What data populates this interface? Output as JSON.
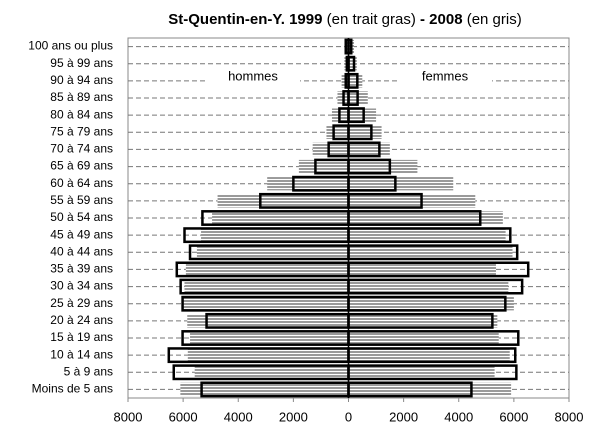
{
  "chart_data": {
    "type": "pyramid",
    "title": [
      {
        "text": "St-Quentin-en-Y. 1999",
        "bold": true
      },
      {
        "text": " (en trait gras) ",
        "bold": false
      },
      {
        "text": "- 2008",
        "bold": true
      },
      {
        "text": " (en gris)",
        "bold": false
      }
    ],
    "annotations": [
      "hommes",
      "femmes"
    ],
    "categories": [
      "100 ans ou plus",
      "95 à 99 ans",
      "90 à 94 ans",
      "85 à 89 ans",
      "80 à 84 ans",
      "75 à 79 ans",
      "70 à 74 ans",
      "65 à 69 ans",
      "60 à 64 ans",
      "55 à 59 ans",
      "50 à 54 ans",
      "45 à 49 ans",
      "40 à 44 ans",
      "35 à 39 ans",
      "30 à 34 ans",
      "25 à 29 ans",
      "20 à 24 ans",
      "15 à 19 ans",
      "10 à 14 ans",
      "5 à 9 ans",
      "Moins de 5 ans"
    ],
    "hommes": {
      "1999": [
        100,
        60,
        100,
        180,
        330,
        540,
        720,
        1200,
        2000,
        3200,
        5300,
        5950,
        5750,
        6230,
        6090,
        6020,
        5150,
        6020,
        6520,
        6340,
        5330
      ],
      "2008": [
        80,
        150,
        250,
        400,
        600,
        800,
        1300,
        1800,
        2950,
        4750,
        4950,
        5350,
        5500,
        5900,
        5950,
        6000,
        5850,
        5750,
        5830,
        5580,
        6100
      ]
    },
    "femmes": {
      "1999": [
        100,
        200,
        320,
        330,
        550,
        830,
        1120,
        1500,
        1700,
        2650,
        4780,
        5870,
        6120,
        6520,
        6300,
        5690,
        5220,
        6160,
        6050,
        6090,
        4460
      ],
      "2008": [
        200,
        300,
        500,
        700,
        1000,
        1200,
        1500,
        2500,
        3800,
        4600,
        5600,
        5700,
        5950,
        5350,
        5800,
        6000,
        5400,
        5450,
        5850,
        5300,
        5900
      ]
    },
    "color_2008": "#9a9a9a",
    "color_1999": "#000000",
    "xlim": [
      -8000,
      8000
    ],
    "xticks": [
      {
        "value": -8000,
        "label": "8000"
      },
      {
        "value": -6000,
        "label": "6000"
      },
      {
        "value": -4000,
        "label": "4000"
      },
      {
        "value": -2000,
        "label": "2000"
      },
      0,
      2000,
      4000,
      6000,
      8000
    ],
    "grid": true
  }
}
